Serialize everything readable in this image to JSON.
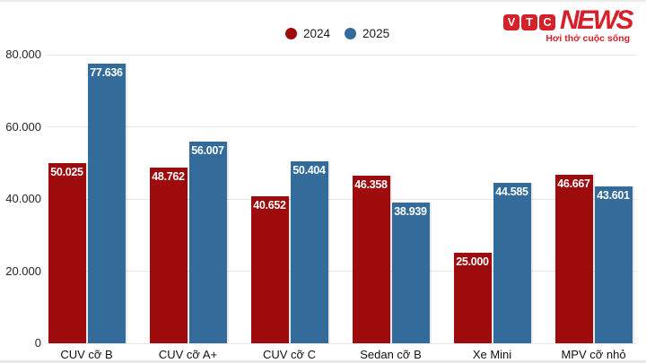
{
  "logo": {
    "blocks": [
      "V",
      "T",
      "C"
    ],
    "news": "NEWS",
    "tagline": "Hơi thở cuộc sống",
    "brand_color": "#d6212a"
  },
  "chart_data": {
    "type": "bar",
    "title": "",
    "xlabel": "",
    "ylabel": "",
    "categories": [
      "CUV cỡ B",
      "CUV cỡ A+",
      "CUV cỡ C",
      "Sedan cỡ B",
      "Xe Mini",
      "MPV cỡ nhỏ"
    ],
    "series": [
      {
        "name": "2024",
        "color": "#9d0b0d",
        "values": [
          50025,
          48762,
          40652,
          46358,
          25000,
          46667
        ],
        "labels": [
          "50.025",
          "48.762",
          "40.652",
          "46.358",
          "25.000",
          "46.667"
        ]
      },
      {
        "name": "2025",
        "color": "#336b9b",
        "values": [
          77636,
          56007,
          50404,
          38939,
          44585,
          43601
        ],
        "labels": [
          "77.636",
          "56.007",
          "50.404",
          "38.939",
          "44.585",
          "43.601"
        ]
      }
    ],
    "ylim": [
      0,
      80000
    ],
    "yticks": [
      {
        "value": 0,
        "label": "0"
      },
      {
        "value": 20000,
        "label": "20.000"
      },
      {
        "value": 40000,
        "label": "40.000"
      },
      {
        "value": 60000,
        "label": "60.000"
      },
      {
        "value": 80000,
        "label": "80.000"
      }
    ],
    "grid": true,
    "legend_position": "top-center"
  }
}
